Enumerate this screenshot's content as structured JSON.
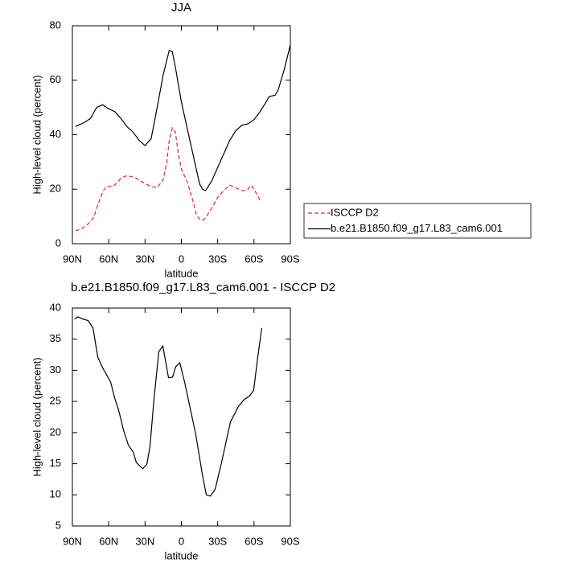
{
  "chart_data": [
    {
      "type": "line",
      "title": "JJA",
      "x_label": "latitude",
      "y_label": "High-level cloud (percent)",
      "xlim": [
        90,
        -90
      ],
      "xticks": [
        {
          "value": 90,
          "label": "90N"
        },
        {
          "value": 60,
          "label": "60N"
        },
        {
          "value": 30,
          "label": "30N"
        },
        0,
        {
          "value": -30,
          "label": "30S"
        },
        {
          "value": -60,
          "label": "60S"
        },
        {
          "value": -90,
          "label": "90S"
        }
      ],
      "ylim": [
        0,
        80
      ],
      "yticks": [
        0,
        20,
        40,
        60,
        80
      ],
      "legend": "right",
      "series": [
        {
          "name": "ISCCP D2",
          "color": "#e8202a",
          "dash": "dashed",
          "x": [
            87.5,
            82.5,
            77.5,
            72.5,
            70,
            65,
            62,
            57,
            55,
            50,
            45,
            40,
            35,
            30,
            25,
            20,
            15,
            12,
            10,
            7.5,
            5,
            2.5,
            0,
            -5,
            -10,
            -12.5,
            -15,
            -17.5,
            -20,
            -25,
            -30,
            -35,
            -40,
            -42.5,
            -45,
            -50,
            -52.5,
            -55,
            -57.5,
            -60,
            -62.5,
            -65
          ],
          "values": [
            4.7,
            5.5,
            7,
            9.5,
            13,
            19,
            21,
            21,
            21.5,
            24,
            25,
            24.5,
            23.5,
            22,
            21,
            20.5,
            23.5,
            30,
            38,
            42.5,
            41,
            33,
            27.5,
            22.5,
            15,
            10.5,
            9,
            8.5,
            9.5,
            13,
            17,
            19.5,
            21.5,
            21,
            20.5,
            19.5,
            19.5,
            20,
            21.5,
            20,
            18,
            16
          ]
        },
        {
          "name": "b.e21.B1850.f09_g17.L83_cam6.001",
          "color": "#000000",
          "dash": "solid",
          "x": [
            87.5,
            80,
            75,
            70,
            65,
            60,
            55,
            50,
            45,
            40,
            35,
            30,
            25,
            20,
            15,
            10,
            7.5,
            5,
            0,
            -5,
            -10,
            -15,
            -17.5,
            -20,
            -25,
            -30,
            -35,
            -40,
            -45,
            -50,
            -55,
            -60,
            -65,
            -70,
            -72.5,
            -77.5,
            -80,
            -85,
            -90
          ],
          "values": [
            43,
            44.5,
            46,
            50,
            51,
            49.5,
            48.5,
            46,
            43,
            41,
            38,
            36,
            38.5,
            50,
            62,
            71,
            70.5,
            65,
            52,
            42,
            32,
            22,
            20,
            19.5,
            23,
            28,
            33,
            38,
            41.5,
            43.5,
            44,
            45.5,
            48.5,
            52,
            54,
            54.5,
            56.5,
            64,
            73
          ]
        }
      ]
    },
    {
      "type": "line",
      "title": "b.e21.B1850.f09_g17.L83_cam6.001 - ISCCP D2",
      "x_label": "latitude",
      "y_label": "High-level cloud (percent)",
      "xlim": [
        90,
        -90
      ],
      "xticks": [
        {
          "value": 90,
          "label": "90N"
        },
        {
          "value": 60,
          "label": "60N"
        },
        {
          "value": 30,
          "label": "30N"
        },
        0,
        {
          "value": -30,
          "label": "30S"
        },
        {
          "value": -60,
          "label": "60S"
        },
        {
          "value": -90,
          "label": "90S"
        }
      ],
      "ylim": [
        5,
        40
      ],
      "yticks": [
        5,
        10,
        15,
        20,
        25,
        30,
        35,
        40
      ],
      "series": [
        {
          "color": "#000000",
          "dash": "solid",
          "x": [
            88.3,
            85.6,
            81,
            77,
            73,
            69,
            65,
            58.4,
            55,
            51.8,
            47.8,
            43.8,
            39.8,
            37.2,
            31.9,
            28.5,
            25.9,
            22.6,
            18.6,
            15.3,
            10.6,
            7.3,
            4.6,
            1.3,
            -2.7,
            -7.3,
            -11.9,
            -17.3,
            -20.6,
            -23.9,
            -27.9,
            -33.2,
            -40.5,
            -47.1,
            -51.8,
            -56.4,
            -59.7,
            -63,
            -66.4
          ],
          "values": [
            38.2,
            38.6,
            38.2,
            38,
            36.8,
            32.1,
            30.4,
            28.1,
            25.5,
            23.6,
            20.4,
            18,
            16.9,
            15.2,
            14.2,
            14.9,
            17.8,
            25.4,
            33,
            33.9,
            28.8,
            28.9,
            30.6,
            31.2,
            28.1,
            23.9,
            19.7,
            13.3,
            10,
            9.8,
            10.9,
            15.2,
            21.7,
            24.2,
            25.3,
            25.9,
            26.8,
            32,
            36.8
          ]
        }
      ]
    }
  ]
}
